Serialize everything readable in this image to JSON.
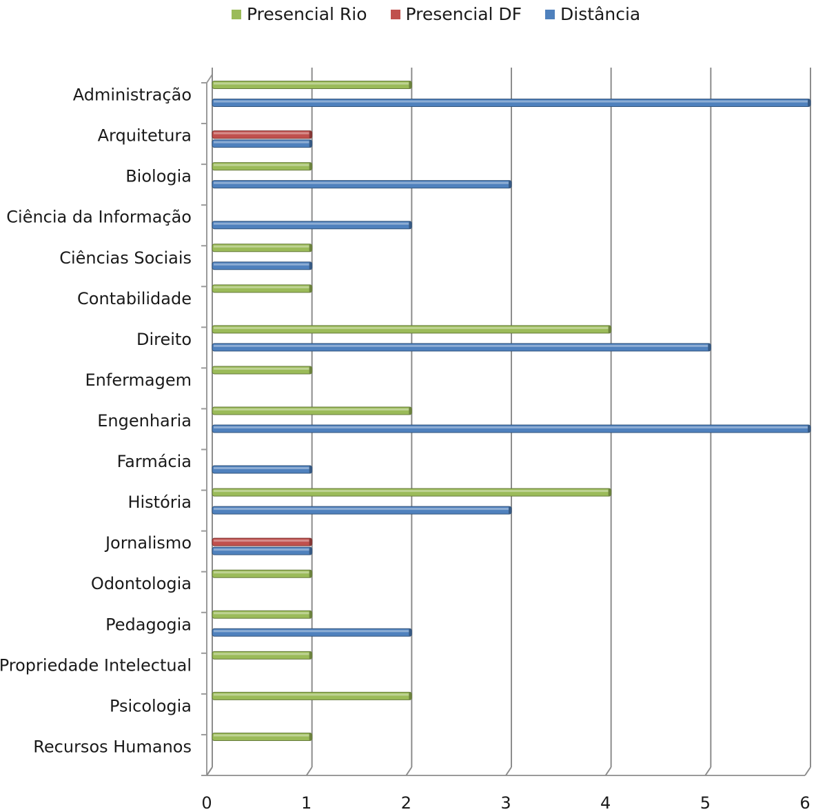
{
  "chart_data": {
    "type": "bar",
    "orientation": "horizontal",
    "categories": [
      "Administração",
      "Arquitetura",
      "Biologia",
      "Ciência da Informação",
      "Ciências Sociais",
      "Contabilidade",
      "Direito",
      "Enfermagem",
      "Engenharia",
      "Farmácia",
      "História",
      "Jornalismo",
      "Odontologia",
      "Pedagogia",
      "Propriedade Intelectual",
      "Psicologia",
      "Recursos Humanos"
    ],
    "series": [
      {
        "name": "Presencial Rio",
        "color": "#9bbb59",
        "values": [
          2,
          0,
          1,
          0,
          1,
          1,
          4,
          1,
          2,
          0,
          4,
          0,
          1,
          1,
          1,
          2,
          1
        ]
      },
      {
        "name": "Presencial DF",
        "color": "#c0504d",
        "values": [
          0,
          1,
          0,
          0,
          0,
          0,
          0,
          0,
          0,
          0,
          0,
          1,
          0,
          0,
          0,
          0,
          0
        ]
      },
      {
        "name": "Distância",
        "color": "#4f81bd",
        "values": [
          6,
          1,
          3,
          2,
          1,
          0,
          5,
          0,
          6,
          1,
          3,
          1,
          0,
          2,
          0,
          0,
          0
        ]
      }
    ],
    "xlim": [
      0,
      6
    ],
    "xticks": [
      "0",
      "1",
      "2",
      "3",
      "4",
      "5",
      "6"
    ],
    "grid": true,
    "legend_position": "top"
  }
}
